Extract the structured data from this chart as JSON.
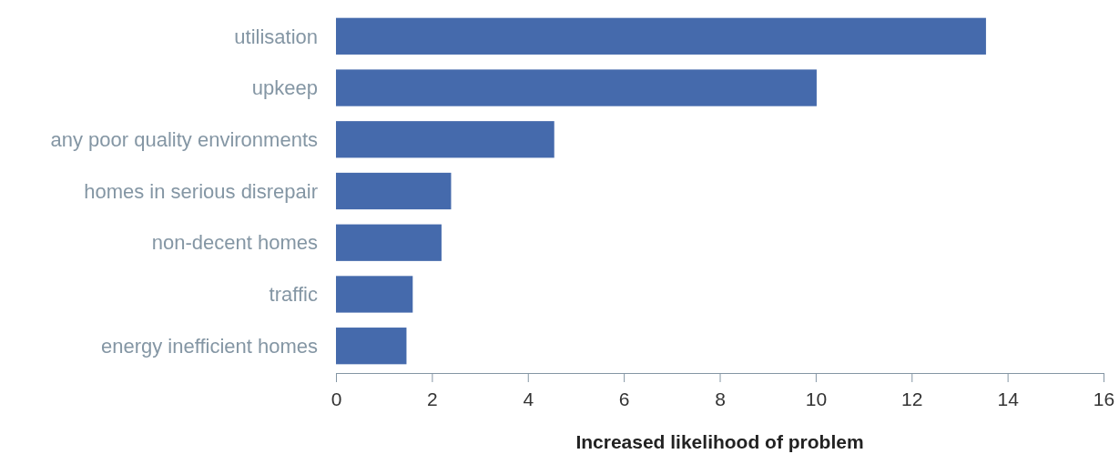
{
  "chart_data": {
    "type": "bar",
    "orientation": "horizontal",
    "xlabel": "Increased likelihood of problem",
    "categories": [
      "utilisation",
      "upkeep",
      "any poor quality environments",
      "homes in serious disrepair",
      "non-decent homes",
      "traffic",
      "energy inefficient homes"
    ],
    "values": [
      13.55,
      10.02,
      4.55,
      2.4,
      2.2,
      1.6,
      1.47
    ],
    "color": "#456aac",
    "xlim": [
      0,
      16
    ],
    "xticks": [
      0,
      2,
      4,
      6,
      8,
      10,
      12,
      14,
      16
    ],
    "grid": false
  }
}
